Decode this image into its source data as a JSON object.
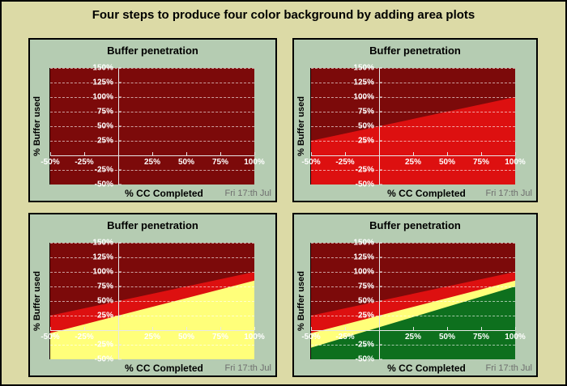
{
  "window": {
    "title": "Four steps to produce four color background by adding area plots"
  },
  "colors": {
    "outer_background": "#dcdaa6",
    "panel_background": "#b5ccb2",
    "panel_border": "#000000",
    "plot_background_darkred": "#7c0a0a",
    "area_red": "#dd1010",
    "area_yellow": "#ffff7a",
    "area_green": "#0e701e",
    "axis_line": "#e8e8e8",
    "gridline": "#ffffff",
    "tick_label": "#ffffff",
    "title_text": "#000000",
    "footer_text": "#6e6e6e"
  },
  "axes": {
    "xlim": [
      -50,
      100
    ],
    "ylim": [
      -50,
      150
    ],
    "tick_step": 25,
    "grid": "dashed-horizontal",
    "x_tick_values": [
      -50,
      -25,
      25,
      50,
      75,
      100
    ],
    "x_tick_labels": [
      "-50%",
      "-25%",
      "25%",
      "50%",
      "75%",
      "100%"
    ],
    "y_tick_values": [
      150,
      125,
      100,
      75,
      50,
      25,
      -25,
      -50
    ],
    "y_tick_labels": [
      "150%",
      "125%",
      "100%",
      "75%",
      "50%",
      "25%",
      "-25%",
      "-50%"
    ],
    "y_gridline_values": [
      150,
      125,
      100,
      75,
      50,
      25,
      -25
    ]
  },
  "chart_data": [
    {
      "type": "area",
      "title": "Buffer penetration",
      "ylabel": "% Buffer used",
      "xlabel": "% CC Completed",
      "footer": "Fri 17:th Jul",
      "xlim": [
        -50,
        100
      ],
      "ylim": [
        -50,
        150
      ],
      "plot_background": "#7c0a0a",
      "areas": []
    },
    {
      "type": "area",
      "title": "Buffer penetration",
      "ylabel": "% Buffer used",
      "xlabel": "% CC Completed",
      "footer": "Fri 17:th Jul",
      "xlim": [
        -50,
        100
      ],
      "ylim": [
        -50,
        150
      ],
      "plot_background": "#7c0a0a",
      "areas": [
        {
          "name": "red-zone",
          "color": "#dd1010",
          "boundary_x": [
            -50,
            100
          ],
          "boundary_y": [
            25,
            100
          ]
        }
      ]
    },
    {
      "type": "area",
      "title": "Buffer penetration",
      "ylabel": "% Buffer used",
      "xlabel": "% CC Completed",
      "footer": "Fri 17:th Jul",
      "xlim": [
        -50,
        100
      ],
      "ylim": [
        -50,
        150
      ],
      "plot_background": "#7c0a0a",
      "areas": [
        {
          "name": "red-zone",
          "color": "#dd1010",
          "boundary_x": [
            -50,
            100
          ],
          "boundary_y": [
            25,
            100
          ]
        },
        {
          "name": "yellow-zone",
          "color": "#ffff7a",
          "boundary_x": [
            -50,
            100
          ],
          "boundary_y": [
            -5,
            85
          ]
        }
      ]
    },
    {
      "type": "area",
      "title": "Buffer penetration",
      "ylabel": "% Buffer used",
      "xlabel": "% CC Completed",
      "footer": "Fri 17:th Jul",
      "xlim": [
        -50,
        100
      ],
      "ylim": [
        -50,
        150
      ],
      "plot_background": "#7c0a0a",
      "areas": [
        {
          "name": "red-zone",
          "color": "#dd1010",
          "boundary_x": [
            -50,
            100
          ],
          "boundary_y": [
            25,
            100
          ]
        },
        {
          "name": "yellow-zone",
          "color": "#ffff7a",
          "boundary_x": [
            -50,
            100
          ],
          "boundary_y": [
            -5,
            85
          ]
        },
        {
          "name": "green-zone",
          "color": "#0e701e",
          "boundary_x": [
            -50,
            100
          ],
          "boundary_y": [
            -30,
            75
          ]
        }
      ]
    }
  ]
}
